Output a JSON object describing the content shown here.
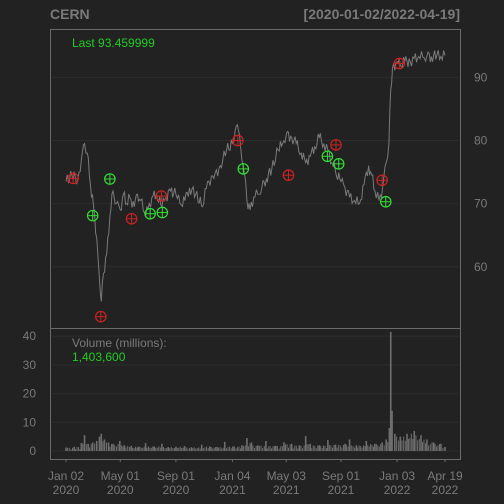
{
  "chart_data": {
    "type": "line",
    "title": "CERN",
    "date_range": "[2020-01-02/2022-04-19]",
    "last_label": "Last 93.459999",
    "volume_label": "Volume (millions):",
    "volume_value": "1,403,600",
    "colors": {
      "background": "#222222",
      "grid": "#2c2c2c",
      "frame": "#6a6a6a",
      "price_line": "#7a7a7a",
      "volume_bars": "#6e6e6e",
      "buy_marker": "#33dd33",
      "sell_marker": "#cc2222",
      "last_text": "#22cc22",
      "volume_value_text": "#22cc22"
    },
    "price_axis": {
      "ylim": [
        50.3,
        97.5
      ],
      "ticks": [
        60,
        70,
        80,
        90
      ],
      "position": "right"
    },
    "volume_axis": {
      "ylim": [
        0,
        42.5
      ],
      "ticks": [
        0,
        10,
        20,
        30,
        40
      ],
      "position": "left"
    },
    "x_axis": {
      "start": "2020-01-02",
      "end": "2022-04-19",
      "ticks": [
        {
          "date": "2020-01-02",
          "line1": "Jan 02",
          "line2": "2020"
        },
        {
          "date": "2020-05-01",
          "line1": "May 01",
          "line2": "2020"
        },
        {
          "date": "2020-09-01",
          "line1": "Sep 01",
          "line2": "2020"
        },
        {
          "date": "2021-01-04",
          "line1": "Jan 04",
          "line2": "2021"
        },
        {
          "date": "2021-05-03",
          "line1": "May 03",
          "line2": "2021"
        },
        {
          "date": "2021-09-01",
          "line1": "Sep 01",
          "line2": "2021"
        },
        {
          "date": "2022-01-03",
          "line1": "Jan 03",
          "line2": "2022"
        },
        {
          "date": "2022-04-19",
          "line1": "Apr 19",
          "line2": "2022"
        }
      ]
    },
    "price_series": [
      [
        "2020-01-02",
        73.5
      ],
      [
        "2020-01-15",
        74.5
      ],
      [
        "2020-01-28",
        73.8
      ],
      [
        "2020-02-05",
        77.0
      ],
      [
        "2020-02-12",
        79.5
      ],
      [
        "2020-02-18",
        78.0
      ],
      [
        "2020-02-25",
        73.0
      ],
      [
        "2020-03-03",
        69.5
      ],
      [
        "2020-03-10",
        64.5
      ],
      [
        "2020-03-16",
        58.0
      ],
      [
        "2020-03-20",
        54.5
      ],
      [
        "2020-03-25",
        59.0
      ],
      [
        "2020-04-01",
        62.0
      ],
      [
        "2020-04-08",
        68.0
      ],
      [
        "2020-04-15",
        72.0
      ],
      [
        "2020-04-22",
        70.0
      ],
      [
        "2020-05-01",
        69.0
      ],
      [
        "2020-05-08",
        71.5
      ],
      [
        "2020-05-15",
        70.0
      ],
      [
        "2020-05-22",
        71.0
      ],
      [
        "2020-06-01",
        69.5
      ],
      [
        "2020-06-08",
        71.5
      ],
      [
        "2020-06-15",
        70.5
      ],
      [
        "2020-06-24",
        68.5
      ],
      [
        "2020-07-01",
        69.0
      ],
      [
        "2020-07-10",
        71.0
      ],
      [
        "2020-07-20",
        71.5
      ],
      [
        "2020-08-01",
        69.5
      ],
      [
        "2020-08-10",
        71.0
      ],
      [
        "2020-08-20",
        72.0
      ],
      [
        "2020-09-01",
        71.5
      ],
      [
        "2020-09-10",
        70.0
      ],
      [
        "2020-09-21",
        70.5
      ],
      [
        "2020-10-01",
        72.5
      ],
      [
        "2020-10-15",
        71.5
      ],
      [
        "2020-10-30",
        69.5
      ],
      [
        "2020-11-10",
        73.5
      ],
      [
        "2020-11-24",
        74.0
      ],
      [
        "2020-12-08",
        76.0
      ],
      [
        "2020-12-22",
        78.5
      ],
      [
        "2021-01-04",
        79.5
      ],
      [
        "2021-01-10",
        81.5
      ],
      [
        "2021-01-15",
        82.5
      ],
      [
        "2021-01-22",
        79.0
      ],
      [
        "2021-01-30",
        75.0
      ],
      [
        "2021-02-05",
        70.5
      ],
      [
        "2021-02-12",
        69.0
      ],
      [
        "2021-02-20",
        71.0
      ],
      [
        "2021-03-01",
        71.5
      ],
      [
        "2021-03-10",
        72.5
      ],
      [
        "2021-03-20",
        74.0
      ],
      [
        "2021-04-01",
        75.5
      ],
      [
        "2021-04-15",
        78.5
      ],
      [
        "2021-04-25",
        79.5
      ],
      [
        "2021-05-03",
        81.0
      ],
      [
        "2021-05-15",
        80.5
      ],
      [
        "2021-05-25",
        79.5
      ],
      [
        "2021-06-05",
        78.0
      ],
      [
        "2021-06-15",
        76.5
      ],
      [
        "2021-06-25",
        77.5
      ],
      [
        "2021-07-05",
        79.0
      ],
      [
        "2021-07-15",
        80.5
      ],
      [
        "2021-07-25",
        79.5
      ],
      [
        "2021-08-03",
        78.5
      ],
      [
        "2021-08-12",
        76.5
      ],
      [
        "2021-08-20",
        75.0
      ],
      [
        "2021-09-01",
        73.5
      ],
      [
        "2021-09-10",
        72.5
      ],
      [
        "2021-09-20",
        71.0
      ],
      [
        "2021-10-01",
        70.5
      ],
      [
        "2021-10-12",
        70.0
      ],
      [
        "2021-10-22",
        73.0
      ],
      [
        "2021-11-01",
        76.0
      ],
      [
        "2021-11-08",
        74.5
      ],
      [
        "2021-11-15",
        72.0
      ],
      [
        "2021-11-24",
        70.5
      ],
      [
        "2021-12-02",
        72.5
      ],
      [
        "2021-12-10",
        76.5
      ],
      [
        "2021-12-16",
        79.5
      ],
      [
        "2021-12-20",
        88.0
      ],
      [
        "2021-12-24",
        91.5
      ],
      [
        "2022-01-03",
        92.5
      ],
      [
        "2022-01-10",
        92.0
      ],
      [
        "2022-01-20",
        92.5
      ],
      [
        "2022-02-01",
        92.5
      ],
      [
        "2022-02-10",
        93.0
      ],
      [
        "2022-02-20",
        93.3
      ],
      [
        "2022-03-01",
        93.2
      ],
      [
        "2022-03-10",
        93.4
      ],
      [
        "2022-03-20",
        93.3
      ],
      [
        "2022-04-01",
        93.5
      ],
      [
        "2022-04-10",
        93.3
      ],
      [
        "2022-04-19",
        93.46
      ]
    ],
    "buy_markers": [
      [
        "2020-03-01",
        68.1
      ],
      [
        "2020-04-08",
        73.9
      ],
      [
        "2020-07-06",
        68.4
      ],
      [
        "2020-08-02",
        68.6
      ],
      [
        "2021-01-28",
        75.5
      ],
      [
        "2021-08-02",
        77.5
      ],
      [
        "2021-08-27",
        76.3
      ],
      [
        "2021-12-09",
        70.3
      ]
    ],
    "sell_markers": [
      [
        "2020-01-18",
        74.0
      ],
      [
        "2020-03-19",
        52.1
      ],
      [
        "2020-05-26",
        67.6
      ],
      [
        "2020-07-31",
        71.2
      ],
      [
        "2021-01-16",
        80.0
      ],
      [
        "2021-05-08",
        74.5
      ],
      [
        "2021-08-21",
        79.3
      ],
      [
        "2021-12-01",
        73.7
      ],
      [
        "2022-01-08",
        92.2
      ]
    ],
    "volume_series": [
      [
        "2020-01-02",
        1.2
      ],
      [
        "2020-01-20",
        1.5
      ],
      [
        "2020-02-05",
        2.8
      ],
      [
        "2020-02-12",
        5.5
      ],
      [
        "2020-02-20",
        2.5
      ],
      [
        "2020-03-01",
        3.0
      ],
      [
        "2020-03-10",
        3.5
      ],
      [
        "2020-03-16",
        5.0
      ],
      [
        "2020-03-20",
        6.0
      ],
      [
        "2020-03-27",
        4.0
      ],
      [
        "2020-04-05",
        3.0
      ],
      [
        "2020-04-15",
        2.5
      ],
      [
        "2020-04-30",
        3.5
      ],
      [
        "2020-05-10",
        2.0
      ],
      [
        "2020-05-25",
        1.8
      ],
      [
        "2020-06-10",
        1.5
      ],
      [
        "2020-06-26",
        2.8
      ],
      [
        "2020-07-15",
        1.6
      ],
      [
        "2020-08-01",
        2.5
      ],
      [
        "2020-08-15",
        1.4
      ],
      [
        "2020-09-01",
        1.5
      ],
      [
        "2020-09-20",
        1.7
      ],
      [
        "2020-10-05",
        1.3
      ],
      [
        "2020-10-28",
        2.2
      ],
      [
        "2020-11-15",
        1.6
      ],
      [
        "2020-12-01",
        1.4
      ],
      [
        "2020-12-18",
        3.2
      ],
      [
        "2021-01-05",
        1.6
      ],
      [
        "2021-01-25",
        2.0
      ],
      [
        "2021-02-05",
        4.5
      ],
      [
        "2021-02-15",
        3.0
      ],
      [
        "2021-03-01",
        2.0
      ],
      [
        "2021-03-19",
        3.5
      ],
      [
        "2021-04-10",
        1.8
      ],
      [
        "2021-04-28",
        3.0
      ],
      [
        "2021-05-15",
        2.5
      ],
      [
        "2021-06-01",
        2.0
      ],
      [
        "2021-06-15",
        5.2
      ],
      [
        "2021-06-25",
        2.5
      ],
      [
        "2021-07-15",
        2.0
      ],
      [
        "2021-08-03",
        3.8
      ],
      [
        "2021-08-20",
        2.2
      ],
      [
        "2021-09-10",
        2.5
      ],
      [
        "2021-09-20",
        4.0
      ],
      [
        "2021-10-05",
        2.0
      ],
      [
        "2021-10-27",
        3.5
      ],
      [
        "2021-11-15",
        2.5
      ],
      [
        "2021-12-01",
        3.0
      ],
      [
        "2021-12-10",
        4.0
      ],
      [
        "2021-12-17",
        8.0
      ],
      [
        "2021-12-20",
        41.5
      ],
      [
        "2021-12-23",
        14.0
      ],
      [
        "2021-12-29",
        6.0
      ],
      [
        "2022-01-10",
        5.0
      ],
      [
        "2022-01-25",
        6.0
      ],
      [
        "2022-02-10",
        7.0
      ],
      [
        "2022-02-25",
        5.5
      ],
      [
        "2022-03-10",
        4.0
      ],
      [
        "2022-03-25",
        3.0
      ],
      [
        "2022-04-10",
        2.5
      ],
      [
        "2022-04-19",
        1.4
      ]
    ]
  }
}
